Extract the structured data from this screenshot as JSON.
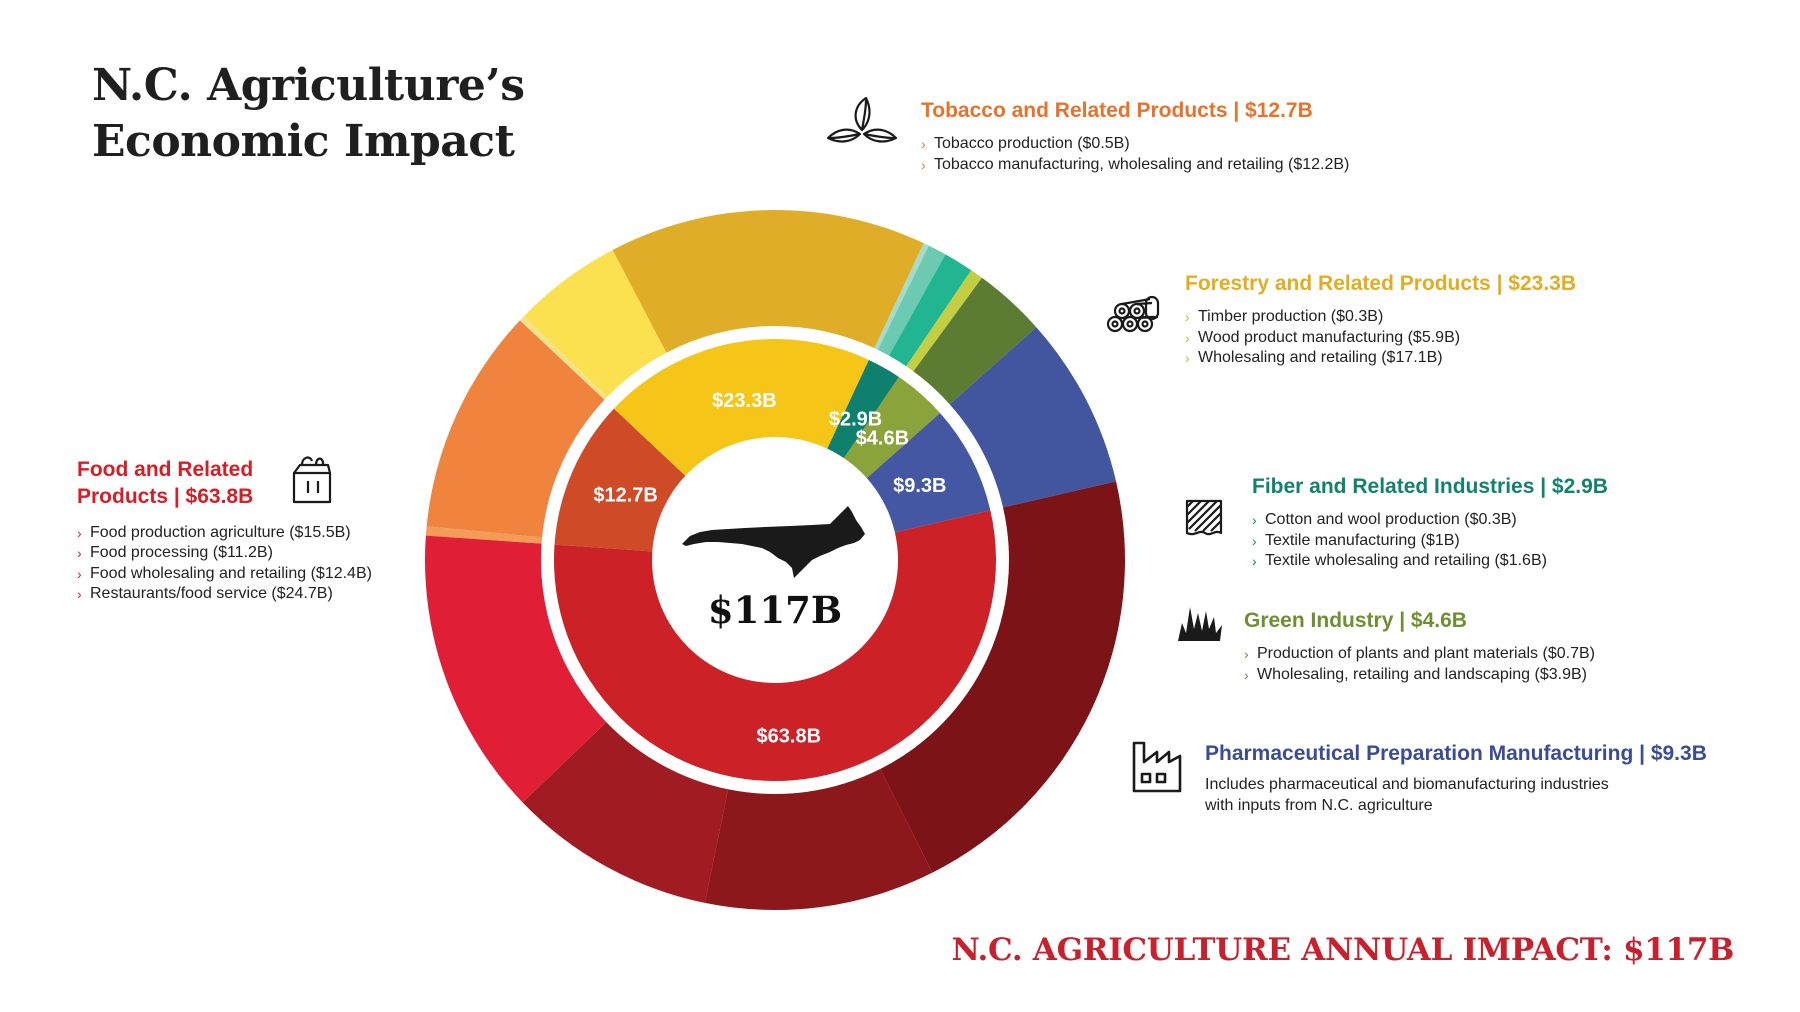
{
  "title": {
    "line1": "N.C. Agriculture’s",
    "line2": "Economic Impact"
  },
  "chart_data": {
    "type": "pie",
    "subtype": "nested-donut",
    "center_label": "$117B",
    "inner_ring": [
      {
        "name": "Food and Related Products",
        "value": 63.8,
        "label": "$63.8B",
        "color": "#cc2127"
      },
      {
        "name": "Tobacco and Related Products",
        "value": 12.7,
        "label": "$12.7B",
        "color": "#cf4a26"
      },
      {
        "name": "Forestry and Related Products",
        "value": 23.3,
        "label": "$23.3B",
        "color": "#f5c518"
      },
      {
        "name": "Fiber and Related Industries",
        "value": 2.9,
        "label": "$2.9B",
        "color": "#0f7f6e"
      },
      {
        "name": "Green Industry",
        "value": 4.6,
        "label": "$4.6B",
        "color": "#8aa33a"
      },
      {
        "name": "Pharmaceutical Preparation Manufacturing",
        "value": 9.3,
        "label": "$9.3B",
        "color": "#4357a2"
      }
    ],
    "outer_ring": [
      {
        "name": "Tobacco production",
        "value": 0.5,
        "color": "#f59b58"
      },
      {
        "name": "Tobacco manufacturing, wholesaling and retailing",
        "value": 12.2,
        "color": "#f0843f"
      },
      {
        "name": "Timber production",
        "value": 0.3,
        "color": "#f3e28a"
      },
      {
        "name": "Wood product manufacturing",
        "value": 5.9,
        "color": "#fbe04f"
      },
      {
        "name": "Wholesaling and retailing",
        "value": 17.1,
        "color": "#e0ad28"
      },
      {
        "name": "Cotton and wool production",
        "value": 0.3,
        "color": "#a5dbc9"
      },
      {
        "name": "Textile manufacturing",
        "value": 1.0,
        "color": "#6ccab2"
      },
      {
        "name": "Textile wholesaling and retailing",
        "value": 1.6,
        "color": "#22b592"
      },
      {
        "name": "Production of plants and plant materials",
        "value": 0.7,
        "color": "#c3ce42"
      },
      {
        "name": "Wholesaling, retailing and landscaping",
        "value": 3.9,
        "color": "#5c7c34"
      },
      {
        "name": "Pharmaceutical and biomanufacturing industries",
        "value": 9.3,
        "color": "#42569f"
      },
      {
        "name": "Restaurants/food service",
        "value": 24.7,
        "color": "#7c1317"
      },
      {
        "name": "Food wholesaling and retailing",
        "value": 12.4,
        "color": "#8c181c"
      },
      {
        "name": "Food processing",
        "value": 11.2,
        "color": "#a11c22"
      },
      {
        "name": "Food production agriculture",
        "value": 15.5,
        "color": "#e01f36"
      }
    ]
  },
  "groups": {
    "food": {
      "title": "Food and Related Products | $63.8B",
      "color": "#d41f26",
      "icon": "grocery-bag-icon",
      "items": [
        "Food production agriculture ($15.5B)",
        "Food processing ($11.2B)",
        "Food wholesaling and retailing ($12.4B)",
        "Restaurants/food service ($24.7B)"
      ]
    },
    "tobacco": {
      "title": "Tobacco and Related Products | $12.7B",
      "color": "#e8722c",
      "icon": "leaves-icon",
      "items": [
        "Tobacco production ($0.5B)",
        "Tobacco manufacturing, wholesaling and retailing ($12.2B)"
      ]
    },
    "forestry": {
      "title": "Forestry and Related Products | $23.3B",
      "color": "#e0ad23",
      "icon": "logs-icon",
      "items": [
        "Timber production ($0.3B)",
        "Wood product manufacturing ($5.9B)",
        "Wholesaling and retailing ($17.1B)"
      ]
    },
    "fiber": {
      "title": "Fiber and Related Industries | $2.9B",
      "color": "#128270",
      "icon": "fabric-icon",
      "items": [
        "Cotton and wool production ($0.3B)",
        "Textile manufacturing ($1B)",
        "Textile wholesaling and retailing ($1.6B)"
      ]
    },
    "green": {
      "title": "Green Industry | $4.6B",
      "color": "#6f8f32",
      "icon": "grass-icon",
      "items": [
        "Production of plants and plant materials ($0.7B)",
        "Wholesaling, retailing and landscaping ($3.9B)"
      ]
    },
    "pharma": {
      "title": "Pharmaceutical Preparation Manufacturing | $9.3B",
      "color": "#3a4c97",
      "icon": "factory-icon",
      "line1": "Includes pharmaceutical and biomanufacturing industries",
      "line2": "with inputs from N.C. agriculture"
    }
  },
  "footer": {
    "total": "N.C. AGRICULTURE ANNUAL IMPACT: $117B"
  }
}
